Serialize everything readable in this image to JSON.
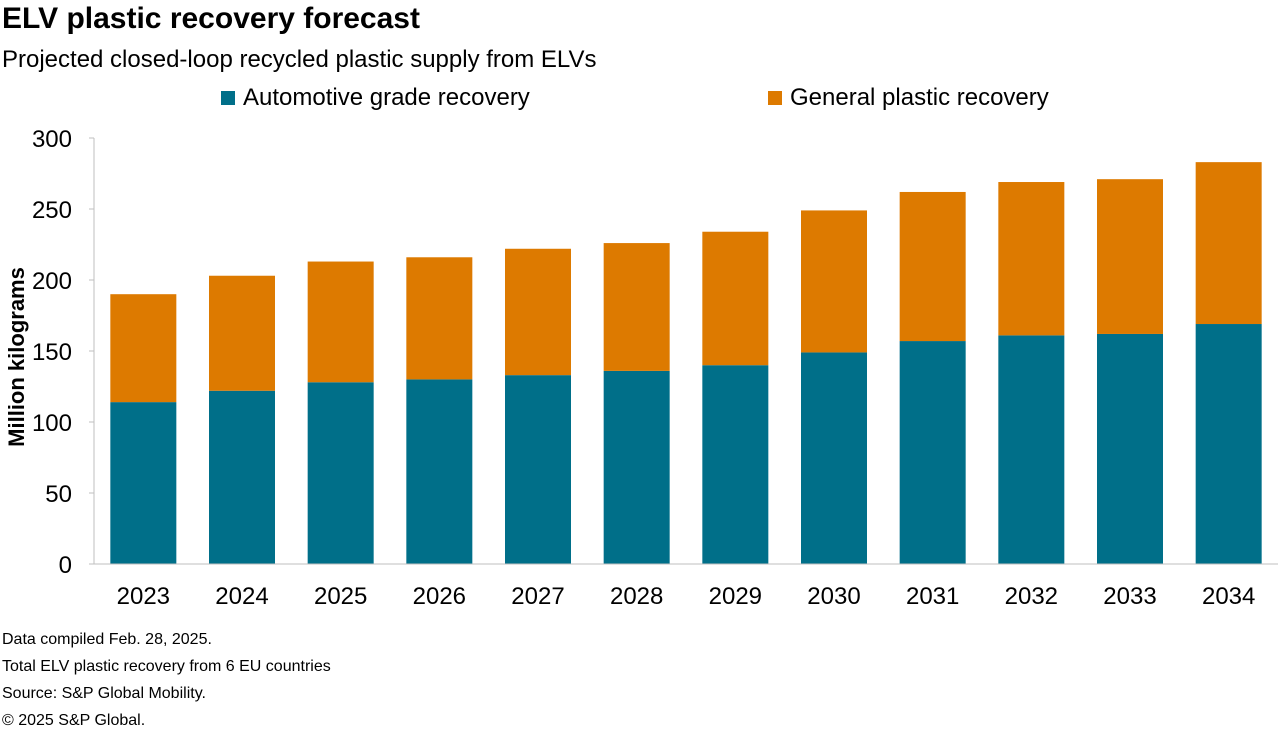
{
  "title": "ELV plastic recovery forecast",
  "subtitle": "Projected closed-loop recycled plastic supply from ELVs",
  "colors": {
    "automotive": "#006f89",
    "general": "#dd7a00",
    "axis": "#bfbfbf"
  },
  "chart_data": {
    "type": "bar",
    "stacked": true,
    "categories": [
      "2023",
      "2024",
      "2025",
      "2026",
      "2027",
      "2028",
      "2029",
      "2030",
      "2031",
      "2032",
      "2033",
      "2034"
    ],
    "series": [
      {
        "name": "Automotive grade recovery",
        "color": "#006f89",
        "values": [
          114,
          122,
          128,
          130,
          133,
          136,
          140,
          149,
          157,
          161,
          162,
          169
        ]
      },
      {
        "name": "General plastic recovery",
        "color": "#dd7a00",
        "values": [
          76,
          81,
          85,
          86,
          89,
          90,
          94,
          100,
          105,
          108,
          109,
          114
        ]
      }
    ],
    "ylabel": "Million kilograms",
    "xlabel": "",
    "ylim": [
      0,
      300
    ],
    "yticks": [
      0,
      50,
      100,
      150,
      200,
      250,
      300
    ],
    "grid": false,
    "legend": "top-center"
  },
  "footnotes": [
    "Data compiled Feb. 28, 2025.",
    "Total ELV plastic recovery from 6 EU countries",
    "Source: S&P Global Mobility.",
    "© 2025 S&P Global."
  ]
}
